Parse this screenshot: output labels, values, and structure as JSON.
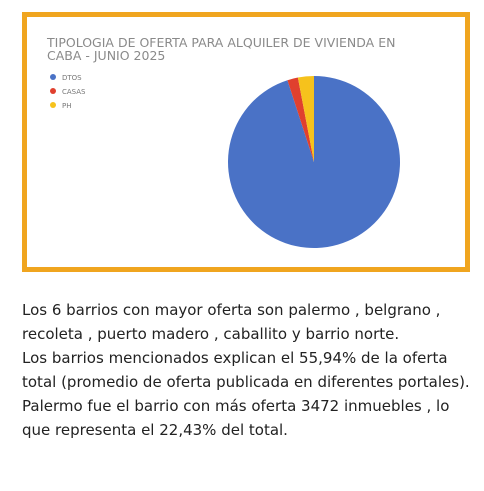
{
  "chart_data": {
    "type": "pie",
    "title": "TIPOLOGIA DE OFERTA PARA ALQUILER DE VIVIENDA EN CABA - JUNIO 2025",
    "categories": [
      "DTOS",
      "CASAS",
      "PH"
    ],
    "values": [
      95,
      2,
      3
    ],
    "colors": [
      "#4a72c6",
      "#e0402e",
      "#f6c21c"
    ],
    "legend": "top-left"
  },
  "paragraphs": [
    "Los 6 barrios con mayor oferta son palermo , belgrano , recoleta , puerto madero , caballito y barrio norte.",
    "Los barrios mencionados explican el 55,94% de la oferta total (promedio de oferta publicada en diferentes porta­les).",
    "Palermo fue el barrio con más oferta 3472 inmuebles , lo que representa el 22,43% del total."
  ]
}
